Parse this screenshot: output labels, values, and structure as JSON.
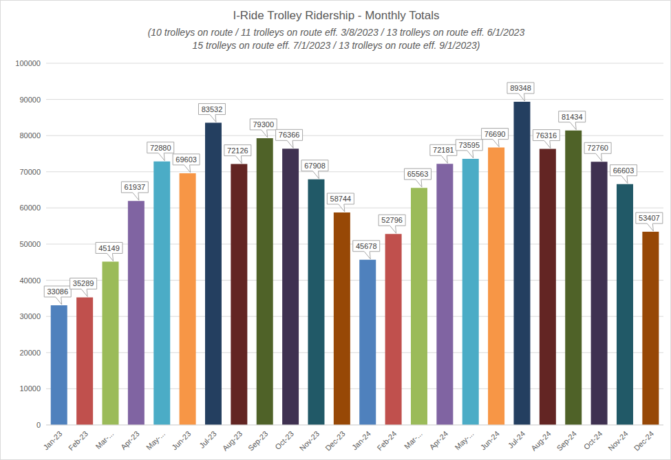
{
  "chart_data": {
    "type": "bar",
    "title": "I-Ride Trolley Ridership - Monthly Totals",
    "subtitle": [
      "(10 trolleys on route / 11 trolleys on route eff. 3/8/2023 / 13 trolleys on route eff. 6/1/2023",
      "15 trolleys on route eff. 7/1/2023 / 13 trolleys on route eff. 9/1/2023)"
    ],
    "categories": [
      "Jan-23",
      "Feb-23",
      "Mar-...",
      "Apr-23",
      "May-...",
      "Jun-23",
      "Jul-23",
      "Aug-23",
      "Sep-23",
      "Oct-23",
      "Nov-23",
      "Dec-23",
      "Jan-24",
      "Feb-24",
      "Mar-...",
      "Apr-24",
      "May-...",
      "Jun-24",
      "Jul-24",
      "Aug-24",
      "Sep-24",
      "Oct-24",
      "Nov-24",
      "Dec-24"
    ],
    "values": [
      33086,
      35289,
      45149,
      61937,
      72880,
      69603,
      83532,
      72126,
      79300,
      76366,
      67908,
      58744,
      45678,
      52796,
      65563,
      72181,
      73595,
      76690,
      89348,
      76316,
      81434,
      72760,
      66603,
      53407
    ],
    "colors": [
      "#4f81bd",
      "#c0504d",
      "#9bbb59",
      "#8064a2",
      "#4bacc6",
      "#f79646",
      "#243f60",
      "#632523",
      "#4f6228",
      "#3f3151",
      "#215967",
      "#974806",
      "#4f81bd",
      "#c0504d",
      "#9bbb59",
      "#8064a2",
      "#4bacc6",
      "#f79646",
      "#243f60",
      "#632523",
      "#4f6228",
      "#3f3151",
      "#215967",
      "#974806"
    ],
    "ylim": [
      0,
      100000
    ],
    "yticks": [
      0,
      10000,
      20000,
      30000,
      40000,
      50000,
      60000,
      70000,
      80000,
      90000,
      100000
    ],
    "grid": true,
    "data_labels": true
  }
}
